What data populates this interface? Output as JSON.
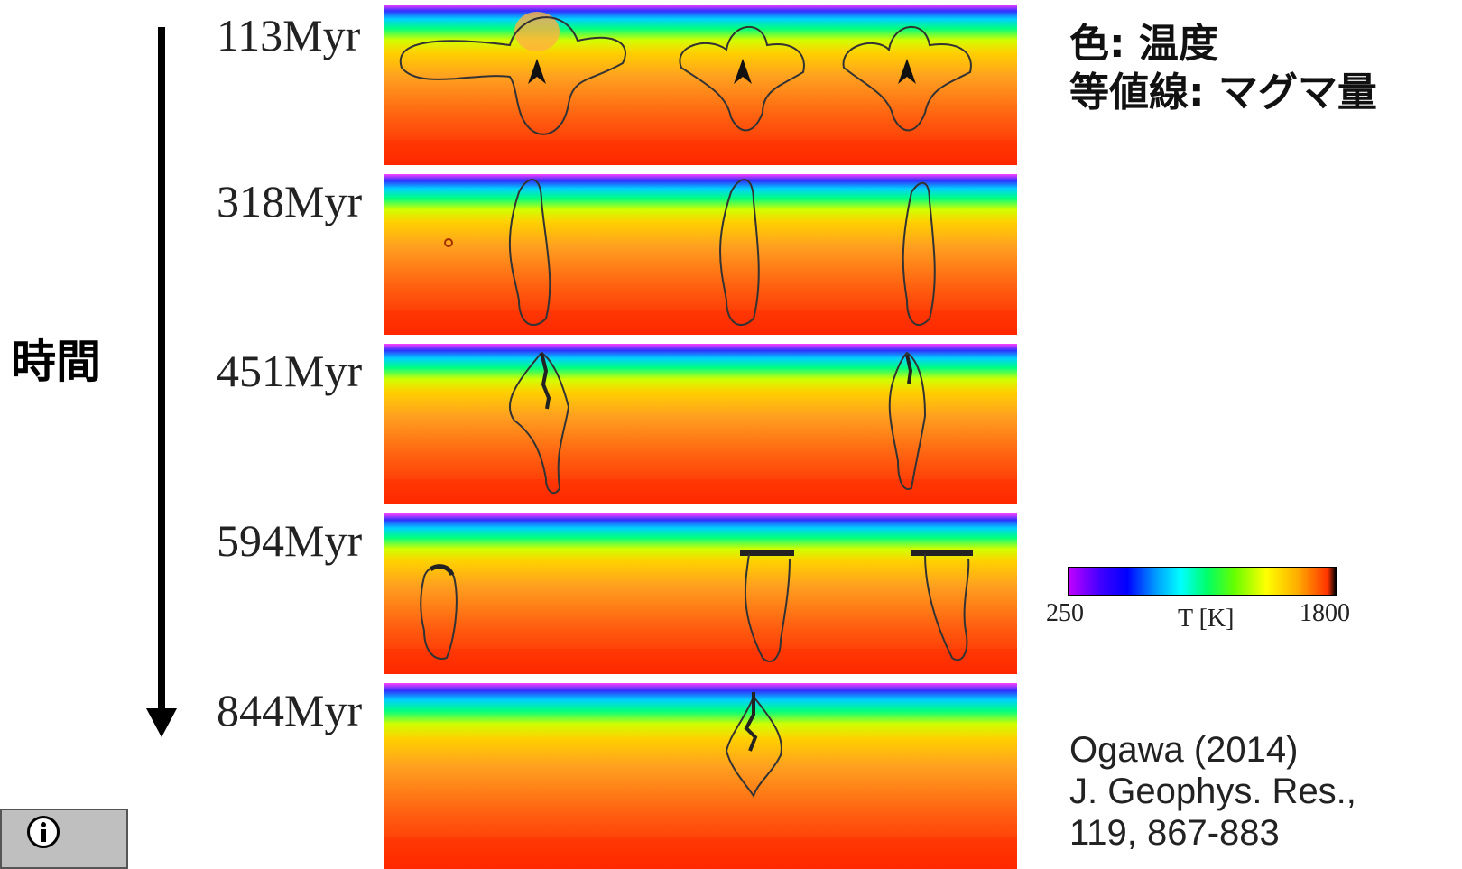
{
  "time_axis": {
    "label": "時間"
  },
  "steps": [
    {
      "label": "113Myr"
    },
    {
      "label": "318Myr"
    },
    {
      "label": "451Myr"
    },
    {
      "label": "594Myr"
    },
    {
      "label": "844Myr"
    }
  ],
  "legend": {
    "color_meaning": "色: 温度",
    "contour_meaning": "等値線: マグマ量"
  },
  "colorbar": {
    "min": "250",
    "max": "1800",
    "unit": "T [K]"
  },
  "citation": {
    "line1": "Ogawa (2014)",
    "line2": "J. Geophys. Res.,",
    "line3": "119, 867-883"
  },
  "icons": {
    "license": "info-icon"
  }
}
